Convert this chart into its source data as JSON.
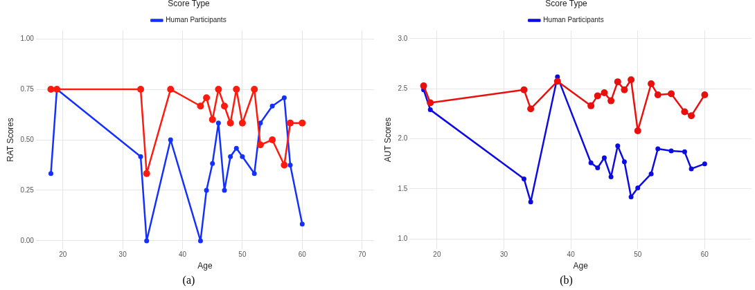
{
  "chart_data": [
    {
      "type": "line",
      "legend_title": "Score Type",
      "legend": "top",
      "xlabel": "Age",
      "ylabel": "RAT Scores",
      "xlim": [
        15.5,
        72
      ],
      "xticks": [
        20,
        30,
        40,
        50,
        60,
        70
      ],
      "ylim": [
        -0.04,
        1.04
      ],
      "yticks": [
        {
          "value": 0,
          "label": "0.00"
        },
        {
          "value": 0.25,
          "label": "0.25"
        },
        {
          "value": 0.5,
          "label": "0.50"
        },
        {
          "value": 0.75,
          "label": "0.75"
        },
        {
          "value": 1,
          "label": "1.00"
        }
      ],
      "grid": true,
      "marker": "circle",
      "line_style": "solid",
      "x": [
        18,
        19,
        33,
        34,
        38,
        43,
        44,
        45,
        46,
        47,
        48,
        49,
        50,
        52,
        53,
        55,
        57,
        58,
        60
      ],
      "annotations": [
        "(a)"
      ],
      "series": [
        {
          "color": "#ff1a0f",
          "values": [
            0.75,
            0.75,
            0.75,
            0.333,
            0.75,
            0.667,
            0.708,
            0.6,
            0.75,
            0.667,
            0.583,
            0.75,
            0.583,
            0.75,
            0.475,
            0.5,
            0.375,
            0.583,
            0.583
          ]
        },
        {
          "name": "Human Participants",
          "color": "#1430ff",
          "values": [
            0.333,
            0.75,
            0.417,
            0,
            0.5,
            0,
            0.25,
            0.383,
            0.583,
            0.25,
            0.417,
            0.458,
            0.417,
            0.333,
            0.583,
            0.667,
            0.708,
            0.375,
            0.083
          ]
        }
      ]
    },
    {
      "type": "line",
      "legend_title": "Score Type",
      "legend": "top",
      "xlabel": "Age",
      "ylabel": "AUT Scores",
      "xlim": [
        15.9,
        67
      ],
      "xticks": [
        20,
        30,
        40,
        50,
        60
      ],
      "ylim": [
        0.9,
        3.08
      ],
      "yticks": [
        {
          "value": 1,
          "label": "1.0"
        },
        {
          "value": 1.5,
          "label": "1.5"
        },
        {
          "value": 2,
          "label": "2.0"
        },
        {
          "value": 2.5,
          "label": "2.5"
        },
        {
          "value": 3,
          "label": "3.0"
        }
      ],
      "grid": true,
      "marker": "circle",
      "line_style": "solid",
      "x": [
        18,
        19,
        33,
        34,
        38,
        43,
        44,
        45,
        46,
        47,
        48,
        49,
        50,
        52,
        53,
        55,
        57,
        58,
        60
      ],
      "annotations": [
        "(b)"
      ],
      "series": [
        {
          "color": "#e8100c",
          "values": [
            2.53,
            2.36,
            2.49,
            2.3,
            2.575,
            2.33,
            2.43,
            2.46,
            2.38,
            2.57,
            2.49,
            2.59,
            2.08,
            2.55,
            2.44,
            2.45,
            2.27,
            2.23,
            2.44
          ]
        },
        {
          "name": "Human Participants",
          "color": "#0c0ce0",
          "values": [
            2.49,
            2.29,
            1.6,
            1.37,
            2.62,
            1.76,
            1.71,
            1.81,
            1.62,
            1.93,
            1.77,
            1.42,
            1.51,
            1.65,
            1.9,
            1.88,
            1.87,
            1.7,
            1.75
          ]
        }
      ]
    }
  ]
}
